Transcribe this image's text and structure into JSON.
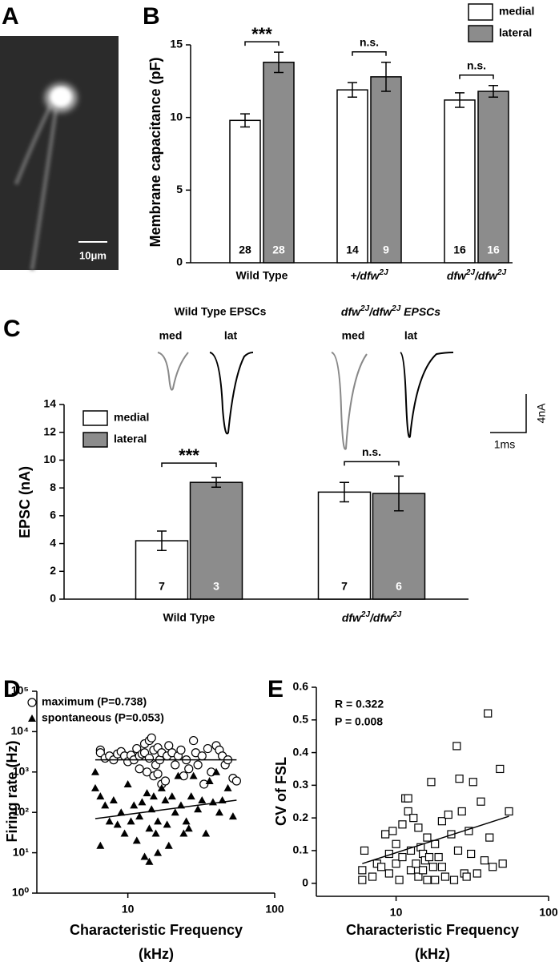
{
  "panel_a": {
    "panel": "A",
    "scale_bar": "10μm"
  },
  "chart_data": [
    {
      "type": "bar",
      "panel": "B",
      "ylabel": "Membrane capacitance (pF)",
      "categories": [
        "Wild Type",
        "+/dfw2J",
        "dfw2J/dfw2J"
      ],
      "series": [
        {
          "name": "medial",
          "color": "#ffffff",
          "values": [
            9.8,
            11.9,
            11.2
          ],
          "errors": [
            0.45,
            0.5,
            0.5
          ],
          "n": [
            28,
            14,
            16
          ]
        },
        {
          "name": "lateral",
          "color": "#8c8c8c",
          "values": [
            13.8,
            12.8,
            11.8
          ],
          "errors": [
            0.7,
            1.0,
            0.4
          ],
          "n": [
            28,
            9,
            16
          ]
        }
      ],
      "significance": [
        "***",
        "n.s.",
        "n.s."
      ],
      "ylim": [
        0,
        15
      ],
      "yticks": [
        0,
        5,
        10,
        15
      ],
      "legend": "upper right"
    },
    {
      "type": "bar",
      "panel": "C",
      "ylabel": "EPSC (nA)",
      "categories": [
        "Wild Type",
        "dfw2J/dfw2J"
      ],
      "series": [
        {
          "name": "medial",
          "color": "#ffffff",
          "values": [
            4.2,
            7.7
          ],
          "errors": [
            0.7,
            0.7
          ],
          "n": [
            7,
            7
          ]
        },
        {
          "name": "lateral",
          "color": "#8c8c8c",
          "values": [
            8.4,
            7.6
          ],
          "errors": [
            0.35,
            1.25
          ],
          "n": [
            3,
            6
          ]
        }
      ],
      "significance": [
        "***",
        "n.s."
      ],
      "ylim": [
        0,
        14
      ],
      "yticks": [
        0,
        2,
        4,
        6,
        8,
        10,
        12,
        14
      ],
      "legend": "upper left",
      "traces": {
        "titles": [
          "Wild Type EPSCs",
          "dfw2J/dfw2J EPSCs"
        ],
        "labels": [
          "med",
          "lat",
          "med",
          "lat"
        ],
        "scale_bar": [
          "4nA",
          "1ms"
        ]
      }
    },
    {
      "type": "scatter",
      "panel": "D",
      "ylabel": "Firing rate (Hz)",
      "xlabel": [
        "Characteristic Frequency",
        "(kHz)"
      ],
      "xlog": true,
      "ylog": true,
      "xlim": [
        2.4,
        100
      ],
      "ylim": [
        1,
        100000
      ],
      "xticks": [
        10,
        100
      ],
      "yticks": [
        {
          "value": 1,
          "label": "10⁰"
        },
        {
          "value": 10,
          "label": "10¹"
        },
        {
          "value": 100,
          "label": "10²"
        },
        {
          "value": 1000,
          "label": "10³"
        },
        {
          "value": 10000,
          "label": "10⁴"
        },
        {
          "value": 100000,
          "label": "10⁵"
        }
      ],
      "legend": "upper left",
      "series": [
        {
          "name": "maximum (P=0.738)",
          "marker": "circle",
          "color": "#ffffff",
          "x": [
            6.5,
            6.5,
            7,
            7.5,
            8,
            8.5,
            9,
            9.5,
            10,
            10.5,
            11,
            11.5,
            12,
            12,
            12.5,
            13,
            13,
            13.5,
            14,
            14,
            14.5,
            15,
            15,
            15.5,
            16,
            16,
            16.5,
            17,
            17,
            18,
            18.5,
            19,
            20,
            21,
            22,
            23,
            24,
            25,
            26,
            28,
            29,
            30,
            32,
            33,
            35,
            37,
            40,
            42,
            44,
            46,
            48,
            52,
            55
          ],
          "values": [
            3500,
            3000,
            2200,
            2500,
            2000,
            2800,
            3200,
            2500,
            1800,
            2600,
            2000,
            3800,
            2500,
            1200,
            2800,
            5000,
            3000,
            1000,
            6000,
            2200,
            7000,
            3500,
            800,
            1500,
            4000,
            900,
            2000,
            3000,
            500,
            600,
            2500,
            4500,
            3000,
            1500,
            2500,
            3500,
            800,
            2000,
            1200,
            6000,
            3000,
            1500,
            2500,
            500,
            3800,
            1000,
            4500,
            3500,
            2500,
            1500,
            2000,
            700,
            600
          ],
          "fit": {
            "x": [
              6,
              55
            ],
            "values": [
              2000,
              2000
            ]
          }
        },
        {
          "name": "spontaneous (P=0.053)",
          "marker": "triangle",
          "color": "#000000",
          "x": [
            6,
            6,
            6.5,
            6.5,
            7,
            7.5,
            8,
            8.5,
            9,
            9.5,
            10,
            10.5,
            11,
            11.5,
            12,
            12.5,
            13,
            13.5,
            14,
            14,
            14.5,
            15,
            15.5,
            16,
            16,
            17,
            18,
            18.5,
            19,
            20,
            21,
            22,
            23,
            24,
            25,
            26,
            27,
            28,
            30,
            32,
            34,
            36,
            38,
            40,
            42,
            44,
            48,
            52
          ],
          "values": [
            1000,
            400,
            250,
            15,
            150,
            60,
            200,
            50,
            100,
            30,
            500,
            60,
            150,
            20,
            80,
            180,
            8,
            300,
            40,
            6,
            120,
            250,
            30,
            60,
            10,
            400,
            200,
            50,
            15,
            250,
            100,
            800,
            150,
            30,
            60,
            40,
            250,
            800,
            120,
            200,
            30,
            600,
            180,
            1000,
            100,
            200,
            400,
            80
          ],
          "fit": {
            "x": [
              6,
              55
            ],
            "values": [
              70,
              200
            ]
          }
        }
      ]
    },
    {
      "type": "scatter",
      "panel": "E",
      "ylabel": "CV of FSL",
      "xlabel": [
        "Characteristic Frequency",
        "(kHz)"
      ],
      "xlog": true,
      "ylog": false,
      "xlim": [
        3,
        100
      ],
      "ylim": [
        -0.04,
        0.6
      ],
      "xticks": [
        10,
        100
      ],
      "yticks": [
        0,
        0.1,
        0.2,
        0.3,
        0.4,
        0.5,
        0.6
      ],
      "annotations": [
        "R = 0.322",
        "P = 0.008"
      ],
      "series": [
        {
          "marker": "square",
          "color": "#ffffff",
          "x": [
            6,
            6,
            6.2,
            7,
            7.5,
            8,
            8.5,
            9,
            9,
            9.5,
            10,
            10,
            10.5,
            11,
            11,
            11.5,
            12,
            12,
            12.5,
            12.5,
            13,
            13.5,
            14,
            14,
            14.5,
            15,
            15,
            15.5,
            16,
            16,
            16.5,
            17,
            17.5,
            18,
            18,
            19,
            20,
            20,
            21,
            22,
            23,
            24,
            25,
            25.5,
            26,
            27,
            28,
            29,
            30,
            31,
            32,
            34,
            36,
            38,
            40,
            41,
            43,
            48,
            50,
            55
          ],
          "values": [
            0.04,
            0.01,
            0.1,
            0.02,
            0.06,
            0.05,
            0.15,
            0.03,
            0.09,
            0.16,
            0.12,
            0.06,
            0.01,
            0.18,
            0.08,
            0.26,
            0.26,
            0.22,
            0.1,
            0.04,
            0.2,
            0.06,
            0.17,
            0.02,
            0.11,
            0.09,
            0.04,
            0.07,
            0.14,
            0.01,
            0.08,
            0.31,
            0.05,
            0.12,
            0.01,
            0.08,
            0.19,
            0.05,
            0.02,
            0.21,
            0.15,
            0.01,
            0.42,
            0.1,
            0.32,
            0.22,
            0.03,
            0.02,
            0.16,
            0.09,
            0.31,
            0.03,
            0.25,
            0.07,
            0.52,
            0.14,
            0.05,
            0.35,
            0.06,
            0.22
          ],
          "fit": {
            "x": [
              6,
              55
            ],
            "values": [
              0.06,
              0.205
            ]
          }
        }
      ]
    }
  ]
}
